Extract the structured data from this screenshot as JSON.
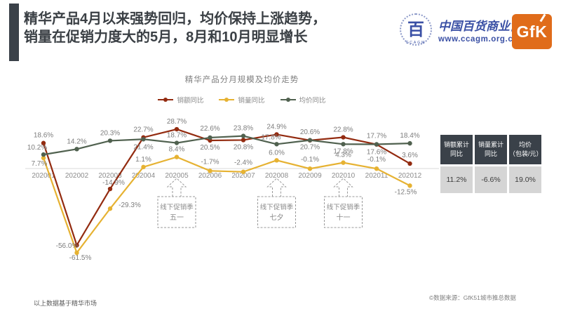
{
  "header": {
    "title_line1": "精华产品4月以来强势回归，均价保持上涨趋势，",
    "title_line2": "销量在促销力度大的5月，8月和10月明显增长",
    "association": {
      "seal_char": "百",
      "seal_sub": "CCAGM",
      "name": "中国百货商业协会",
      "url": "www.ccagm.org.cn",
      "brand_blue": "#3a50a5"
    },
    "gfk": {
      "label": "GfK",
      "brand_orange": "#e06c1a"
    }
  },
  "chart_data": {
    "type": "line",
    "title": "精华产品分月规模及均价走势",
    "categories": [
      "202001",
      "202002",
      "202003",
      "202004",
      "202005",
      "202006",
      "202007",
      "202008",
      "202009",
      "202010",
      "202011",
      "202012"
    ],
    "unit": "%",
    "ylim": [
      -70,
      35
    ],
    "grid": false,
    "legend_position": "top",
    "series": [
      {
        "name": "销额同比",
        "color": "#932b10",
        "values": [
          18.6,
          -56.0,
          -14.9,
          22.7,
          28.7,
          20.5,
          20.8,
          24.9,
          20.6,
          22.8,
          17.6,
          3.6
        ],
        "label_offsets": [
          [
            0,
            -8
          ],
          [
            -14,
            4
          ],
          [
            5,
            -6
          ],
          [
            0,
            -8
          ],
          [
            0,
            -8
          ],
          [
            0,
            13
          ],
          [
            0,
            13
          ],
          [
            0,
            -8
          ],
          [
            0,
            -9
          ],
          [
            0,
            -8
          ],
          [
            0,
            14
          ],
          [
            0,
            -9
          ]
        ]
      },
      {
        "name": "销量同比",
        "color": "#e6b232",
        "values": [
          7.7,
          -61.5,
          -29.3,
          1.1,
          8.4,
          -1.7,
          -2.4,
          6.0,
          -0.1,
          4.3,
          -0.1,
          -12.5
        ],
        "label_offsets": [
          [
            -6,
            11
          ],
          [
            5,
            10
          ],
          [
            28,
            -2
          ],
          [
            0,
            -8
          ],
          [
            0,
            -8
          ],
          [
            0,
            -10
          ],
          [
            0,
            -10
          ],
          [
            0,
            -8
          ],
          [
            0,
            -10
          ],
          [
            0,
            -8
          ],
          [
            0,
            -10
          ],
          [
            -6,
            12
          ]
        ]
      },
      {
        "name": "均价同比",
        "color": "#50614f",
        "values": [
          10.2,
          14.2,
          20.3,
          21.4,
          18.7,
          22.6,
          23.8,
          17.8,
          20.7,
          17.8,
          17.7,
          18.4
        ],
        "label_offsets": [
          [
            -9,
            -7
          ],
          [
            0,
            -8
          ],
          [
            0,
            -8
          ],
          [
            0,
            14
          ],
          [
            0,
            -8
          ],
          [
            0,
            -10
          ],
          [
            0,
            -8
          ],
          [
            -8,
            -7
          ],
          [
            0,
            13
          ],
          [
            0,
            13
          ],
          [
            0,
            -9
          ],
          [
            0,
            -8
          ]
        ]
      }
    ],
    "annotations": [
      {
        "category_index": 4,
        "line1": "线下促销季",
        "line2": "五一"
      },
      {
        "category_index": 7,
        "line1": "线下促销季",
        "line2": "七夕"
      },
      {
        "category_index": 9,
        "line1": "线下促销季",
        "line2": "十一"
      }
    ]
  },
  "summary_table": {
    "headers": [
      "销额累计\n同比",
      "销量累计\n同比",
      "均价\n（包装/元）"
    ],
    "values": [
      "11.2%",
      "-6.6%",
      "19.0%"
    ],
    "header_bg": "#3a4149",
    "header_text": "#ffffff",
    "value_bg": "#d5d5d5"
  },
  "footer": {
    "left_note": "以上数据基于精华市场",
    "right_source": "©数据来源：GfK51城市推总数据"
  }
}
